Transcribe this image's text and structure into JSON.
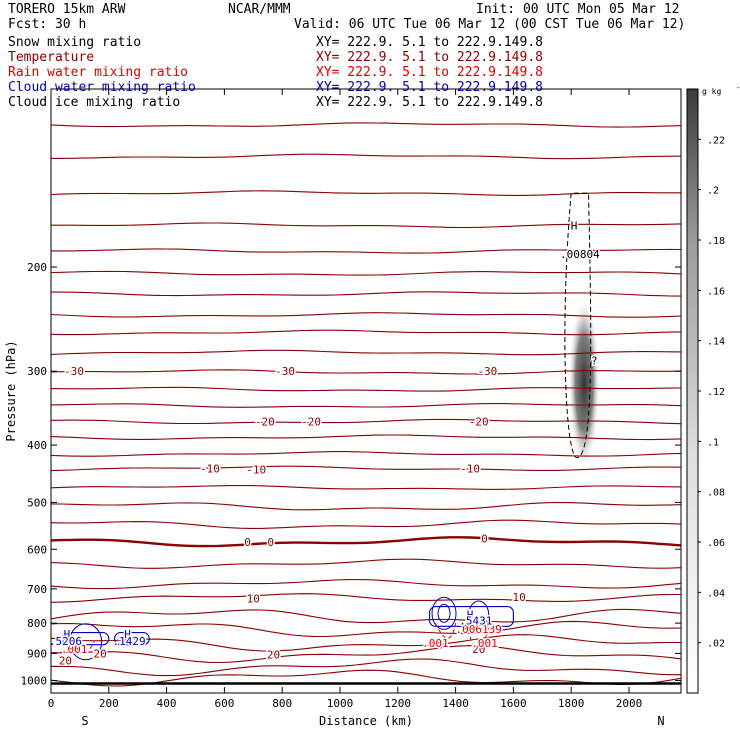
{
  "header": {
    "model": "TORERO  15km ARW",
    "center": "NCAR/MMM",
    "init": "Init: 00 UTC Mon 05 Mar 12",
    "fcst": "Fcst:   30 h",
    "valid": "Valid: 06 UTC Tue 06 Mar 12 (00 CST Tue 06 Mar 12)"
  },
  "fields": [
    {
      "name": "Snow mixing ratio",
      "xy": "XY= 222.9.  5.1 to 222.9.149.8",
      "color": "#000000"
    },
    {
      "name": "Temperature",
      "xy": "XY= 222.9.  5.1 to 222.9.149.8",
      "color": "#8b0000"
    },
    {
      "name": "Rain water mixing ratio",
      "xy": "XY= 222.9.  5.1 to 222.9.149.8",
      "color": "#dd0000"
    },
    {
      "name": "Cloud water mixing ratio",
      "xy": "XY= 222.9.  5.1 to 222.9.149.8",
      "color": "#0000bb"
    },
    {
      "name": "Cloud ice mixing ratio",
      "xy": "XY= 222.9.  5.1 to 222.9.149.8",
      "color": "#000000"
    }
  ],
  "chart_data": {
    "type": "cross-section",
    "xlabel": "Distance (km)",
    "ylabel": "Pressure (hPa)",
    "x_ticks": [
      0,
      200,
      400,
      600,
      800,
      1000,
      1200,
      1400,
      1600,
      1800,
      2000
    ],
    "y_ticks": [
      200,
      300,
      400,
      500,
      600,
      700,
      800,
      900,
      1000
    ],
    "xlim": [
      0,
      2180
    ],
    "ylim": [
      1050,
      100
    ],
    "y_scale": "log",
    "endpoints": {
      "left": "S",
      "right": "N"
    },
    "colorbar": {
      "unit": "g kg",
      "unit_exp": "-1",
      "ticks": [
        ".02",
        ".04",
        ".06",
        ".08",
        ".1",
        ".12",
        ".14",
        ".16",
        ".18",
        ".2",
        ".22"
      ],
      "range": [
        0,
        0.24
      ]
    },
    "temperature_isotherms": {
      "color": "#8b0000",
      "zero_color": "#8b0000",
      "lines": [
        {
          "base": 115,
          "label": ""
        },
        {
          "base": 130,
          "label": ""
        },
        {
          "base": 150,
          "label": ""
        },
        {
          "base": 170,
          "label": ""
        },
        {
          "base": 188,
          "label": ""
        },
        {
          "base": 205,
          "label": ""
        },
        {
          "base": 222,
          "label": ""
        },
        {
          "base": 241,
          "label": ""
        },
        {
          "base": 258,
          "label": ""
        },
        {
          "base": 279,
          "label": ""
        },
        {
          "base": 301,
          "label": "-30"
        },
        {
          "base": 322,
          "label": ""
        },
        {
          "base": 343,
          "label": ""
        },
        {
          "base": 365,
          "label": "-20"
        },
        {
          "base": 388,
          "label": ""
        },
        {
          "base": 414,
          "label": ""
        },
        {
          "base": 438,
          "label": "-10"
        },
        {
          "base": 472,
          "label": ""
        },
        {
          "base": 508,
          "label": ""
        },
        {
          "base": 545,
          "label": ""
        },
        {
          "base": 583,
          "label": "0"
        },
        {
          "base": 635,
          "label": ""
        },
        {
          "base": 687,
          "label": ""
        },
        {
          "base": 725,
          "label": "10"
        },
        {
          "base": 780,
          "label": ""
        },
        {
          "base": 820,
          "label": ""
        },
        {
          "base": 865,
          "label": ""
        },
        {
          "base": 903,
          "label": "20"
        },
        {
          "base": 950,
          "label": ""
        },
        {
          "base": 990,
          "label": ""
        }
      ]
    },
    "contour_labels": [
      {
        "text": "-30",
        "x": 80,
        "p": 300,
        "kind": "temp"
      },
      {
        "text": "-30",
        "x": 810,
        "p": 300,
        "kind": "temp"
      },
      {
        "text": "-30",
        "x": 1510,
        "p": 300,
        "kind": "temp"
      },
      {
        "text": "-20",
        "x": 740,
        "p": 365,
        "kind": "temp"
      },
      {
        "text": "-20",
        "x": 900,
        "p": 365,
        "kind": "temp"
      },
      {
        "text": "-20",
        "x": 1480,
        "p": 365,
        "kind": "temp"
      },
      {
        "text": "-10",
        "x": 550,
        "p": 438,
        "kind": "temp"
      },
      {
        "text": "-10",
        "x": 710,
        "p": 440,
        "kind": "temp"
      },
      {
        "text": "-10",
        "x": 1450,
        "p": 438,
        "kind": "temp"
      },
      {
        "text": "0",
        "x": 680,
        "p": 583,
        "kind": "temp"
      },
      {
        "text": "0",
        "x": 760,
        "p": 583,
        "kind": "temp"
      },
      {
        "text": "0",
        "x": 1500,
        "p": 575,
        "kind": "temp"
      },
      {
        "text": "10",
        "x": 700,
        "p": 727,
        "kind": "temp"
      },
      {
        "text": "10",
        "x": 1620,
        "p": 722,
        "kind": "temp"
      },
      {
        "text": "20",
        "x": 170,
        "p": 900,
        "kind": "temp"
      },
      {
        "text": "20",
        "x": 770,
        "p": 903,
        "kind": "temp"
      },
      {
        "text": "20",
        "x": 1480,
        "p": 885,
        "kind": "temp"
      },
      {
        "text": "20",
        "x": 50,
        "p": 925,
        "kind": "temp"
      },
      {
        "text": ".001",
        "x": 80,
        "p": 885,
        "kind": "rain"
      },
      {
        "text": ".001",
        "x": 1330,
        "p": 865,
        "kind": "rain"
      },
      {
        "text": ".001",
        "x": 1500,
        "p": 865,
        "kind": "rain"
      },
      {
        "text": ".006139",
        "x": 1480,
        "p": 818,
        "kind": "rain"
      },
      {
        "text": "H",
        "x": 55,
        "p": 835,
        "kind": "cloud"
      },
      {
        "text": ".5206",
        "x": 50,
        "p": 857,
        "kind": "cloud"
      },
      {
        "text": "H",
        "x": 265,
        "p": 835,
        "kind": "cloud"
      },
      {
        "text": ".1429",
        "x": 270,
        "p": 857,
        "kind": "cloud"
      },
      {
        "text": "H",
        "x": 1450,
        "p": 774,
        "kind": "cloud"
      },
      {
        "text": ".5431",
        "x": 1470,
        "p": 792,
        "kind": "cloud"
      },
      {
        "text": "H",
        "x": 1810,
        "p": 170,
        "kind": "snow"
      },
      {
        "text": ".00804",
        "x": 1830,
        "p": 190,
        "kind": "snow"
      },
      {
        "text": "?",
        "x": 1880,
        "p": 288,
        "kind": "snow"
      }
    ],
    "cloud_ice_max": {
      "x": 1845,
      "p_top": 230,
      "p_bottom": 430,
      "value": 0.22
    }
  }
}
